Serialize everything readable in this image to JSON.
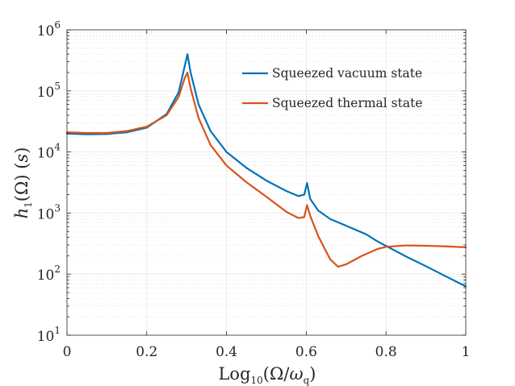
{
  "chart_data": {
    "type": "line",
    "title": "",
    "xlabel": "Log10(Ω/ωq)",
    "xlabel_parts": {
      "base": "Log",
      "sub": "10",
      "open": "(Ω/",
      "omega": "ω",
      "omega_sub": "q",
      "close": ")"
    },
    "ylabel": "h1(Ω) (s)",
    "ylabel_parts": {
      "h": "h",
      "sub": "1",
      "rest": "(Ω) (",
      "s": "s",
      "close": ")"
    },
    "xlim": [
      0,
      1
    ],
    "ylim": [
      10,
      1000000
    ],
    "yscale": "log",
    "grid": true,
    "legend_position": "top-right",
    "x_ticks": [
      "0",
      "0.2",
      "0.4",
      "0.6",
      "0.8",
      "1"
    ],
    "x_tick_values": [
      0,
      0.2,
      0.4,
      0.6,
      0.8,
      1
    ],
    "y_ticks": [
      {
        "base": "10",
        "exp": "1",
        "value": 10
      },
      {
        "base": "10",
        "exp": "2",
        "value": 100
      },
      {
        "base": "10",
        "exp": "3",
        "value": 1000
      },
      {
        "base": "10",
        "exp": "4",
        "value": 10000
      },
      {
        "base": "10",
        "exp": "5",
        "value": 100000
      },
      {
        "base": "10",
        "exp": "6",
        "value": 1000000
      }
    ],
    "series": [
      {
        "name": "Squeezed vacuum state",
        "color": "#0072BD",
        "x": [
          0,
          0.05,
          0.1,
          0.15,
          0.2,
          0.25,
          0.28,
          0.295,
          0.302,
          0.31,
          0.33,
          0.36,
          0.4,
          0.45,
          0.5,
          0.55,
          0.58,
          0.595,
          0.602,
          0.61,
          0.63,
          0.66,
          0.7,
          0.75,
          0.78,
          0.8,
          0.85,
          0.9,
          0.95,
          1.0
        ],
        "y": [
          20000,
          19500,
          19700,
          21000,
          25000,
          42000,
          95000,
          250000,
          400000,
          200000,
          60000,
          22000,
          10000,
          5500,
          3400,
          2300,
          1900,
          2000,
          3100,
          1700,
          1100,
          800,
          620,
          450,
          340,
          290,
          195,
          135,
          92,
          63
        ]
      },
      {
        "name": "Squeezed thermal state",
        "color": "#D95319",
        "x": [
          0,
          0.05,
          0.1,
          0.15,
          0.2,
          0.25,
          0.28,
          0.295,
          0.302,
          0.31,
          0.33,
          0.36,
          0.4,
          0.45,
          0.5,
          0.55,
          0.58,
          0.595,
          0.602,
          0.61,
          0.63,
          0.66,
          0.68,
          0.7,
          0.74,
          0.78,
          0.8,
          0.85,
          0.9,
          0.95,
          1.0
        ],
        "y": [
          21000,
          20500,
          20500,
          22000,
          26000,
          40000,
          80000,
          160000,
          200000,
          110000,
          36000,
          13000,
          6000,
          3200,
          1850,
          1050,
          830,
          860,
          1350,
          900,
          420,
          175,
          132,
          145,
          200,
          260,
          280,
          295,
          292,
          285,
          275
        ]
      }
    ]
  }
}
